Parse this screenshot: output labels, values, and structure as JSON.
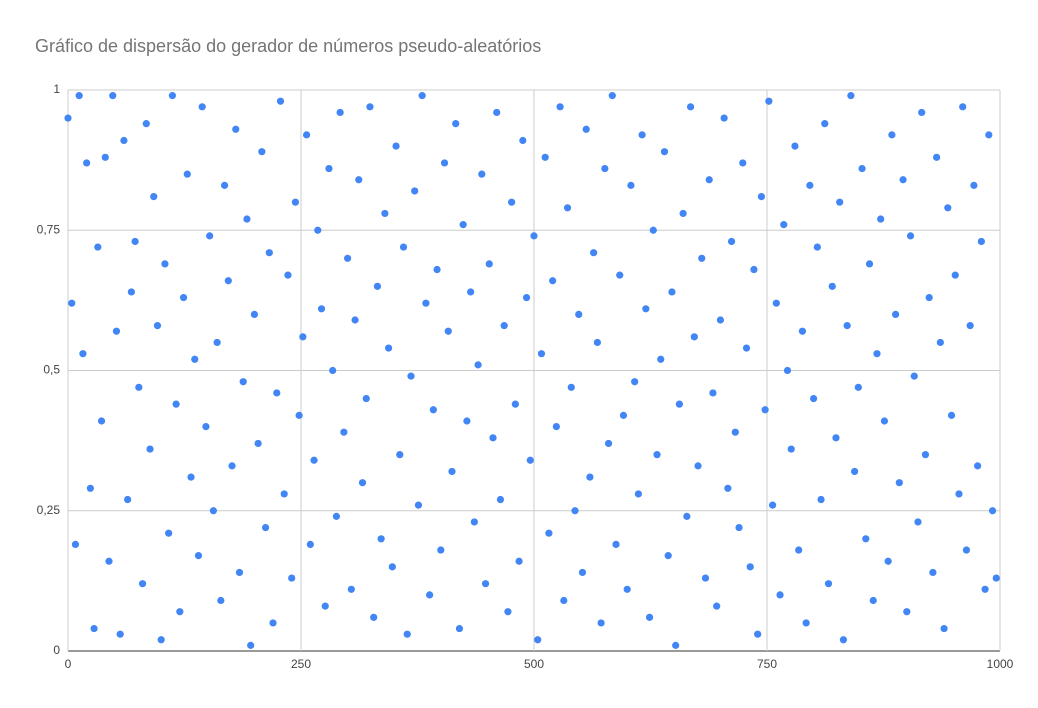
{
  "chart_data": {
    "type": "scatter",
    "title": "Gráfico de dispersão do gerador de números pseudo-aleatórios",
    "color": "#4285f4",
    "grid": true,
    "xlim": [
      0,
      1000
    ],
    "xticks": [
      0,
      250,
      500,
      750,
      1000
    ],
    "ylim": [
      0,
      1
    ],
    "yticks": [
      0,
      {
        "value": 0.25,
        "label": "0,25"
      },
      {
        "value": 0.5,
        "label": "0,5"
      },
      {
        "value": 0.75,
        "label": "0,75"
      },
      1
    ],
    "x": [
      0,
      4,
      8,
      12,
      16,
      20,
      24,
      28,
      32,
      36,
      40,
      44,
      48,
      52,
      56,
      60,
      64,
      68,
      72,
      76,
      80,
      84,
      88,
      92,
      96,
      100,
      104,
      108,
      112,
      116,
      120,
      124,
      128,
      132,
      136,
      140,
      144,
      148,
      152,
      156,
      160,
      164,
      168,
      172,
      176,
      180,
      184,
      188,
      192,
      196,
      200,
      204,
      208,
      212,
      216,
      220,
      224,
      228,
      232,
      236,
      240,
      244,
      248,
      252,
      256,
      260,
      264,
      268,
      272,
      276,
      280,
      284,
      288,
      292,
      296,
      300,
      304,
      308,
      312,
      316,
      320,
      324,
      328,
      332,
      336,
      340,
      344,
      348,
      352,
      356,
      360,
      364,
      368,
      372,
      376,
      380,
      384,
      388,
      392,
      396,
      400,
      404,
      408,
      412,
      416,
      420,
      424,
      428,
      432,
      436,
      440,
      444,
      448,
      452,
      456,
      460,
      464,
      468,
      472,
      476,
      480,
      484,
      488,
      492,
      496,
      500,
      504,
      508,
      512,
      516,
      520,
      524,
      528,
      532,
      536,
      540,
      544,
      548,
      552,
      556,
      560,
      564,
      568,
      572,
      576,
      580,
      584,
      588,
      592,
      596,
      600,
      604,
      608,
      612,
      616,
      620,
      624,
      628,
      632,
      636,
      640,
      644,
      648,
      652,
      656,
      660,
      664,
      668,
      672,
      676,
      680,
      684,
      688,
      692,
      696,
      700,
      704,
      708,
      712,
      716,
      720,
      724,
      728,
      732,
      736,
      740,
      744,
      748,
      752,
      756,
      760,
      764,
      768,
      772,
      776,
      780,
      784,
      788,
      792,
      796,
      800,
      804,
      808,
      812,
      816,
      820,
      824,
      828,
      832,
      836,
      840,
      844,
      848,
      852,
      856,
      860,
      864,
      868,
      872,
      876,
      880,
      884,
      888,
      892,
      896,
      900,
      904,
      908,
      912,
      916,
      920,
      924,
      928,
      932,
      936,
      940,
      944,
      948,
      952,
      956,
      960,
      964,
      968,
      972,
      976,
      980,
      984,
      988,
      992,
      996
    ],
    "values": [
      0.95,
      0.62,
      0.19,
      0.99,
      0.53,
      0.87,
      0.29,
      0.04,
      0.72,
      0.41,
      0.88,
      0.16,
      0.99,
      0.57,
      0.03,
      0.91,
      0.27,
      0.64,
      0.73,
      0.47,
      0.12,
      0.94,
      0.36,
      0.81,
      0.58,
      0.02,
      0.69,
      0.21,
      0.99,
      0.44,
      0.07,
      0.63,
      0.85,
      0.31,
      0.52,
      0.17,
      0.97,
      0.4,
      0.74,
      0.25,
      0.55,
      0.09,
      0.83,
      0.66,
      0.33,
      0.93,
      0.14,
      0.48,
      0.77,
      0.01,
      0.6,
      0.37,
      0.89,
      0.22,
      0.71,
      0.05,
      0.46,
      0.98,
      0.28,
      0.67,
      0.13,
      0.8,
      0.42,
      0.56,
      0.92,
      0.19,
      0.34,
      0.75,
      0.61,
      0.08,
      0.86,
      0.5,
      0.24,
      0.96,
      0.39,
      0.7,
      0.11,
      0.59,
      0.84,
      0.3,
      0.45,
      0.97,
      0.06,
      0.65,
      0.2,
      0.78,
      0.54,
      0.15,
      0.9,
      0.35,
      0.72,
      0.03,
      0.49,
      0.82,
      0.26,
      0.99,
      0.62,
      0.1,
      0.43,
      0.68,
      0.18,
      0.87,
      0.57,
      0.32,
      0.94,
      0.04,
      0.76,
      0.41,
      0.64,
      0.23,
      0.51,
      0.85,
      0.12,
      0.69,
      0.38,
      0.96,
      0.27,
      0.58,
      0.07,
      0.8,
      0.44,
      0.16,
      0.91,
      0.63,
      0.34,
      0.74,
      0.02,
      0.53,
      0.88,
      0.21,
      0.66,
      0.4,
      0.97,
      0.09,
      0.79,
      0.47,
      0.25,
      0.6,
      0.14,
      0.93,
      0.31,
      0.71,
      0.55,
      0.05,
      0.86,
      0.37,
      0.99,
      0.19,
      0.67,
      0.42,
      0.11,
      0.83,
      0.48,
      0.28,
      0.92,
      0.61,
      0.06,
      0.75,
      0.35,
      0.52,
      0.89,
      0.17,
      0.64,
      0.01,
      0.44,
      0.78,
      0.24,
      0.97,
      0.56,
      0.33,
      0.7,
      0.13,
      0.84,
      0.46,
      0.08,
      0.59,
      0.95,
      0.29,
      0.73,
      0.39,
      0.22,
      0.87,
      0.54,
      0.15,
      0.68,
      0.03,
      0.81,
      0.43,
      0.98,
      0.26,
      0.62,
      0.1,
      0.76,
      0.5,
      0.36,
      0.9,
      0.18,
      0.57,
      0.05,
      0.83,
      0.45,
      0.72,
      0.27,
      0.94,
      0.12,
      0.65,
      0.38,
      0.8,
      0.02,
      0.58,
      0.99,
      0.32,
      0.47,
      0.86,
      0.2,
      0.69,
      0.09,
      0.53,
      0.77,
      0.41,
      0.16,
      0.92,
      0.6,
      0.3,
      0.84,
      0.07,
      0.74,
      0.49,
      0.23,
      0.96,
      0.35,
      0.63,
      0.14,
      0.88,
      0.55,
      0.04,
      0.79,
      0.42,
      0.67,
      0.28,
      0.97,
      0.18,
      0.58,
      0.83,
      0.33,
      0.73,
      0.11,
      0.92,
      0.25,
      0.13
    ]
  }
}
